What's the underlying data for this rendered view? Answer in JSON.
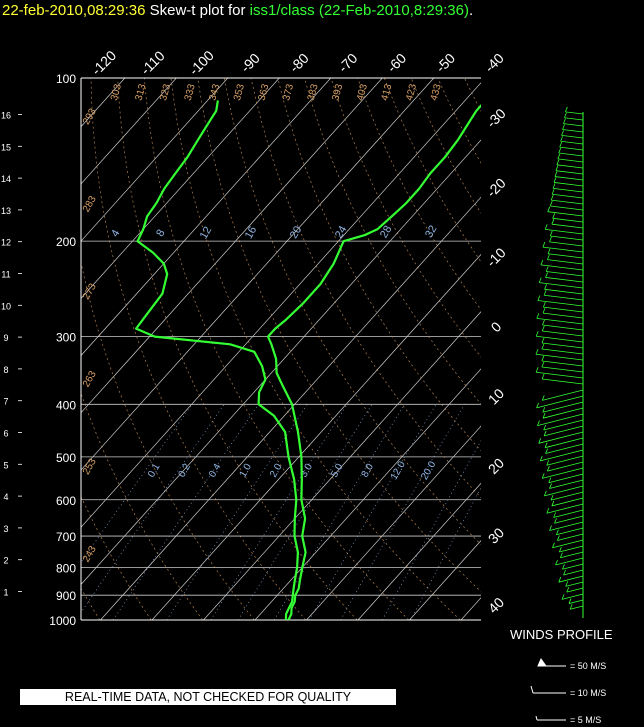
{
  "title": {
    "timestamp": "22-feb-2010,08:29:36",
    "text": " Skew-t plot for ",
    "dataset": "iss1/class (22-Feb-2010,8:29:36)",
    "end": "."
  },
  "chart_data": {
    "type": "line",
    "title": "Skew-t plot for iss1/class (22-Feb-2010,8:29:36)",
    "pressure_levels": [
      100,
      200,
      300,
      400,
      500,
      600,
      700,
      800,
      900,
      1000
    ],
    "pressure_tick_labels": [
      "100",
      "200",
      "300",
      "400",
      "500",
      "600",
      "700",
      "800",
      "900",
      "1000"
    ],
    "height_km_ticks": [
      "1",
      "2",
      "3",
      "4",
      "5",
      "6",
      "7",
      "8",
      "9",
      "10",
      "11",
      "12",
      "13",
      "14",
      "15",
      "16"
    ],
    "top_temp_labels": [
      "-120",
      "-110",
      "-100",
      "-90",
      "-80",
      "-70",
      "-60",
      "-50",
      "-40"
    ],
    "right_temp_labels": [
      "-30",
      "-20",
      "-10",
      "0",
      "10",
      "20",
      "30",
      "40"
    ],
    "dry_adiabat_labels": [
      "303",
      "313",
      "323",
      "333",
      "343",
      "353",
      "363",
      "373",
      "383",
      "393",
      "403",
      "413",
      "423",
      "433",
      "293",
      "283",
      "273",
      "263",
      "253",
      "243"
    ],
    "mixing_ratio_labels_upper": [
      "4",
      "8",
      "12",
      "16",
      "20",
      "24",
      "28",
      "32"
    ],
    "mixing_ratio_labels_lower": [
      "0.1",
      "0.2",
      "0.4",
      "1.0",
      "2.0",
      "3.0",
      "5.0",
      "8.0",
      "12.0",
      "20.0"
    ],
    "series": [
      {
        "kind": "temperature",
        "color": "#33ff33",
        "points": [
          [
            1000,
            6.5
          ],
          [
            975,
            6.0
          ],
          [
            950,
            5.0
          ],
          [
            925,
            4.5
          ],
          [
            900,
            3.5
          ],
          [
            875,
            3.0
          ],
          [
            850,
            2.0
          ],
          [
            800,
            0.0
          ],
          [
            750,
            -2.0
          ],
          [
            700,
            -5.5
          ],
          [
            650,
            -8.0
          ],
          [
            600,
            -12.0
          ],
          [
            550,
            -15.5
          ],
          [
            500,
            -19.5
          ],
          [
            450,
            -24.5
          ],
          [
            400,
            -30.5
          ],
          [
            370,
            -35.5
          ],
          [
            350,
            -39.0
          ],
          [
            330,
            -41.5
          ],
          [
            310,
            -45.0
          ],
          [
            300,
            -47.0
          ],
          [
            290,
            -47.0
          ],
          [
            280,
            -46.5
          ],
          [
            260,
            -46.0
          ],
          [
            240,
            -46.0
          ],
          [
            220,
            -47.0
          ],
          [
            200,
            -49.0
          ],
          [
            195,
            -46.0
          ],
          [
            190,
            -44.5
          ],
          [
            180,
            -44.0
          ],
          [
            170,
            -43.5
          ],
          [
            160,
            -43.5
          ],
          [
            150,
            -44.0
          ],
          [
            140,
            -44.0
          ],
          [
            130,
            -44.5
          ],
          [
            120,
            -45.5
          ],
          [
            115,
            -46.0
          ],
          [
            110,
            -46.0
          ]
        ]
      },
      {
        "kind": "dewpoint",
        "color": "#33ff33",
        "points": [
          [
            1000,
            6.0
          ],
          [
            975,
            5.0
          ],
          [
            950,
            4.5
          ],
          [
            925,
            4.0
          ],
          [
            900,
            3.0
          ],
          [
            875,
            2.0
          ],
          [
            850,
            1.0
          ],
          [
            800,
            -1.0
          ],
          [
            750,
            -3.5
          ],
          [
            700,
            -7.0
          ],
          [
            650,
            -10.0
          ],
          [
            600,
            -13.0
          ],
          [
            550,
            -17.0
          ],
          [
            500,
            -22.0
          ],
          [
            450,
            -27.0
          ],
          [
            420,
            -32.0
          ],
          [
            400,
            -37.0
          ],
          [
            380,
            -39.0
          ],
          [
            360,
            -40.0
          ],
          [
            340,
            -43.0
          ],
          [
            320,
            -47.0
          ],
          [
            310,
            -53.0
          ],
          [
            300,
            -69.0
          ],
          [
            290,
            -74.0
          ],
          [
            270,
            -74.5
          ],
          [
            250,
            -75.0
          ],
          [
            230,
            -77.5
          ],
          [
            220,
            -80.0
          ],
          [
            210,
            -84.0
          ],
          [
            200,
            -89.0
          ],
          [
            190,
            -90.0
          ],
          [
            180,
            -91.5
          ],
          [
            170,
            -92.0
          ],
          [
            160,
            -93.0
          ],
          [
            150,
            -93.5
          ],
          [
            140,
            -94.0
          ],
          [
            130,
            -95.0
          ],
          [
            120,
            -96.0
          ],
          [
            115,
            -96.5
          ],
          [
            110,
            -98.0
          ]
        ]
      }
    ],
    "wind_profile": {
      "title": "WINDS PROFILE",
      "key": [
        "= 50 M/S",
        "= 10 M/S",
        "= 5 M/S"
      ]
    }
  },
  "notice": "REAL-TIME DATA, NOT CHECKED FOR QUALITY",
  "colors": {
    "background": "#000000",
    "trace": "#33ff33",
    "grid": "#cccccc",
    "adiabat": "#d9a066",
    "mixing": "#8fb3e0",
    "title_time": "#ffff33"
  }
}
